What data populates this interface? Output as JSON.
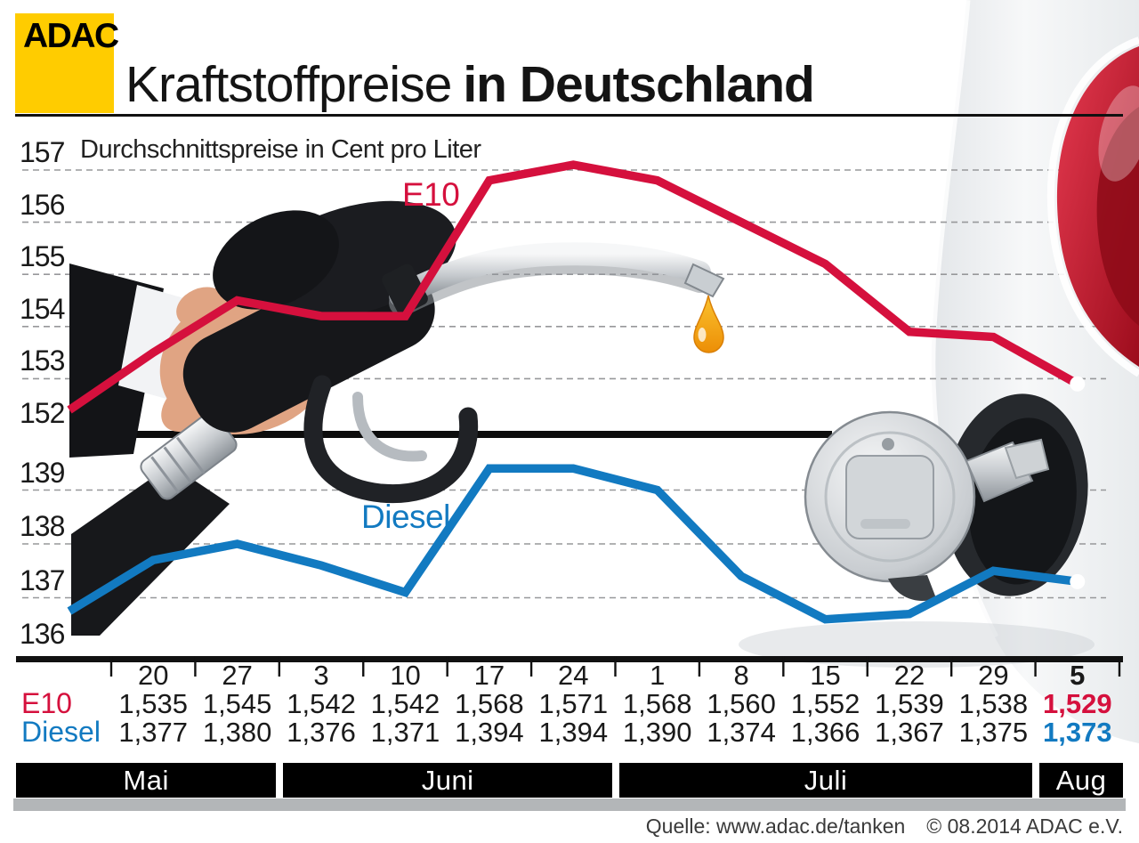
{
  "header": {
    "logo_text": "ADAC",
    "title_regular": "Kraftstoffpreise",
    "title_bold": "in Deutschland",
    "subtitle": "Durchschnittspreise in Cent pro Liter"
  },
  "chart_data": {
    "type": "line",
    "title": "Kraftstoffpreise in Deutschland",
    "subtitle": "Durchschnittspreise in Cent pro Liter",
    "unit": "Cent pro Liter",
    "x_tick_labels": [
      "20",
      "27",
      "3",
      "10",
      "17",
      "24",
      "1",
      "8",
      "15",
      "22",
      "29",
      "5"
    ],
    "months": [
      {
        "label": "Mai",
        "columns": 2
      },
      {
        "label": "Juni",
        "columns": 4
      },
      {
        "label": "Juli",
        "columns": 5
      },
      {
        "label": "Aug",
        "columns": 1
      }
    ],
    "upper_panel": {
      "axis_ticks": [
        157,
        156,
        155,
        154,
        153,
        152
      ],
      "range": [
        152,
        157
      ],
      "series": "E10"
    },
    "lower_panel": {
      "axis_ticks": [
        139,
        138,
        137,
        136
      ],
      "range": [
        136,
        139
      ],
      "series": "Diesel"
    },
    "grid": "dashed-horizontal",
    "legend_position": "inline-labels",
    "series": [
      {
        "name": "E10",
        "color": "#d5103d",
        "panel": "upper",
        "lead_in_value": 152.4,
        "values": [
          153.5,
          154.5,
          154.2,
          154.2,
          156.8,
          157.1,
          156.8,
          156.0,
          155.2,
          153.9,
          153.8,
          152.9
        ],
        "endpoint_marker": "white-dot"
      },
      {
        "name": "Diesel",
        "color": "#127ac1",
        "panel": "lower",
        "lead_in_value": 136.75,
        "values": [
          137.7,
          138.0,
          137.6,
          137.1,
          139.4,
          139.4,
          139.0,
          137.4,
          136.6,
          136.7,
          137.5,
          137.3
        ],
        "endpoint_marker": "white-dot"
      }
    ]
  },
  "table": {
    "column_headers": [
      "20",
      "27",
      "3",
      "10",
      "17",
      "24",
      "1",
      "8",
      "15",
      "22",
      "29",
      "5"
    ],
    "bold_last_column": true,
    "rows": [
      {
        "label": "E10",
        "color": "#d5103d",
        "values": [
          "1,535",
          "1,545",
          "1,542",
          "1,542",
          "1,568",
          "1,571",
          "1,568",
          "1,560",
          "1,552",
          "1,539",
          "1,538",
          "1,529"
        ]
      },
      {
        "label": "Diesel",
        "color": "#127ac1",
        "values": [
          "1,377",
          "1,380",
          "1,376",
          "1,371",
          "1,394",
          "1,394",
          "1,390",
          "1,374",
          "1,366",
          "1,367",
          "1,375",
          "1,373"
        ]
      }
    ]
  },
  "footer": {
    "source": "Quelle: www.adac.de/tanken",
    "copyright": "© 08.2014  ADAC e.V."
  },
  "colors": {
    "e10": "#d5103d",
    "diesel": "#127ac1",
    "logo_yellow": "#ffcc00",
    "axis_black": "#111111",
    "grid_gray": "#97989a",
    "month_bar": "#000000",
    "month_shadow": "#b3b6b8"
  }
}
